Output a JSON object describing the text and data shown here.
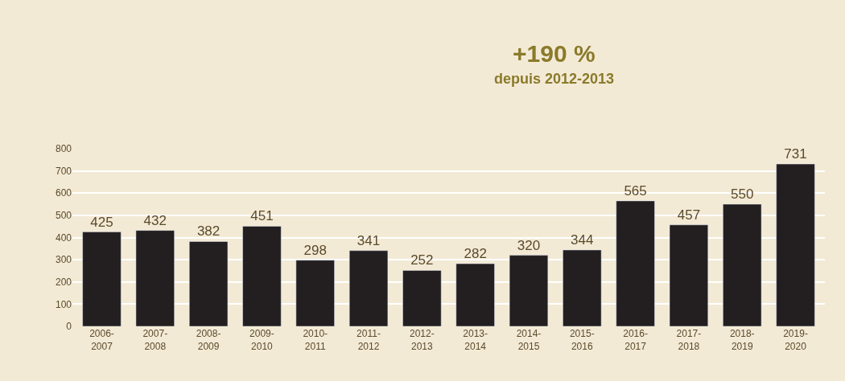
{
  "chart_data": {
    "type": "bar",
    "categories": [
      "2006-2007",
      "2007-2008",
      "2008-2009",
      "2009-2010",
      "2010-2011",
      "2011-2012",
      "2012-2013",
      "2013-2014",
      "2014-2015",
      "2015-2016",
      "2016-2017",
      "2017-2018",
      "2018-2019",
      "2019-2020"
    ],
    "values": [
      425,
      432,
      382,
      451,
      298,
      341,
      252,
      282,
      320,
      344,
      565,
      457,
      550,
      731
    ],
    "color": "#231f20",
    "ylim": [
      0,
      800
    ],
    "yticks": [
      0,
      100,
      200,
      300,
      400,
      500,
      600,
      700,
      800
    ],
    "grid": "y",
    "data_labels": true,
    "annotations": [
      "+190 %",
      "depuis 2012-2013"
    ]
  }
}
